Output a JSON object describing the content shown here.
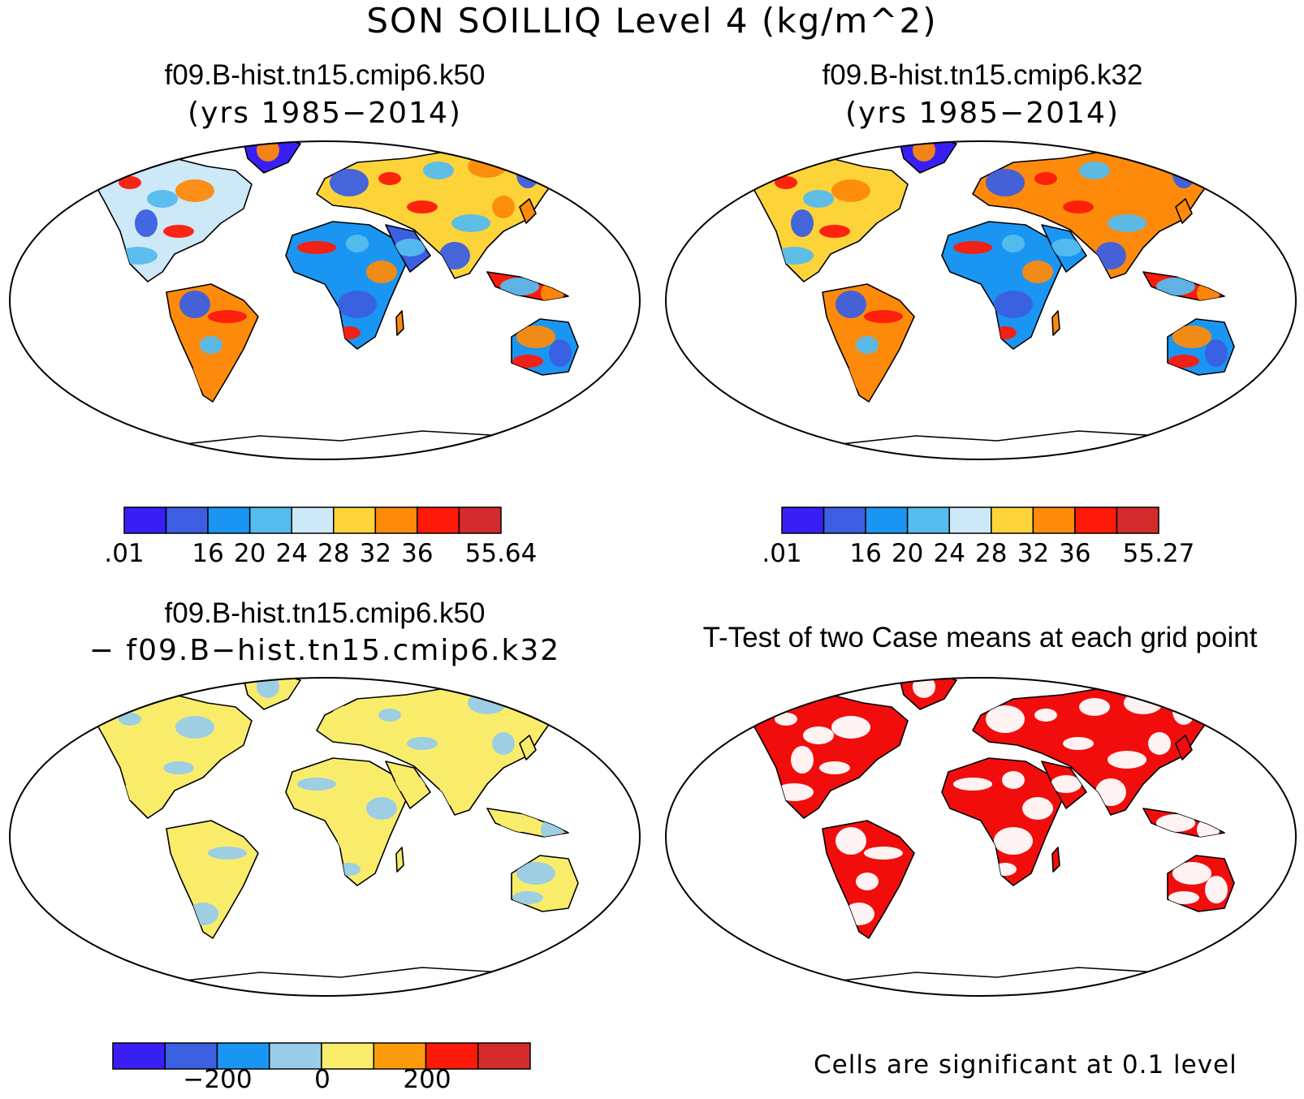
{
  "title": "SON SOILLIQ Level 4 (kg/m^2)",
  "panels": [
    {
      "id": "k50",
      "title": "f09.B-hist.tn15.cmip6.k50",
      "subtitle": "(yrs 1985−2014)",
      "colorbar": {
        "colors": [
          "#3a1ff5",
          "#3b5fe0",
          "#1a96f2",
          "#55bcee",
          "#cde8f7",
          "#fdd33a",
          "#fd8a0b",
          "#fd1a0b",
          "#d42c2c"
        ],
        "labels": [
          ".01",
          "",
          "16",
          "20",
          "24",
          "28",
          "32",
          "36",
          "",
          "55.64"
        ]
      }
    },
    {
      "id": "k32",
      "title": "f09.B-hist.tn15.cmip6.k32",
      "subtitle": "(yrs 1985−2014)",
      "colorbar": {
        "colors": [
          "#3a1ff5",
          "#3b5fe0",
          "#1a96f2",
          "#55bcee",
          "#cde8f7",
          "#fdd33a",
          "#fd8a0b",
          "#fd1a0b",
          "#d42c2c"
        ],
        "labels": [
          ".01",
          "",
          "16",
          "20",
          "24",
          "28",
          "32",
          "36",
          "",
          "55.27"
        ]
      }
    },
    {
      "id": "diff",
      "title": "f09.B-hist.tn15.cmip6.k50",
      "subtitle": "− f09.B−hist.tn15.cmip6.k32",
      "colorbar": {
        "colors": [
          "#3a1ff5",
          "#3b5fe0",
          "#1a96f2",
          "#98cce9",
          "#faec6b",
          "#fd9c0b",
          "#fd1a0b",
          "#d42c2c"
        ],
        "labels": [
          "",
          "",
          "−200",
          "",
          "0",
          "",
          "200",
          "",
          ""
        ]
      }
    },
    {
      "id": "ttest",
      "title": "T-Test of two Case means at each grid point",
      "note": "Cells are significant at 0.1 level",
      "fill": "#f20d0d"
    }
  ]
}
